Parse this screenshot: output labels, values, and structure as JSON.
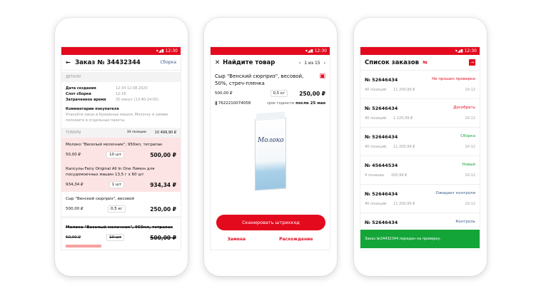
{
  "status_time": "12:30",
  "order": {
    "title": "Заказ № 34432344",
    "status": "Сборка",
    "details_label": "ДЕТАЛИ",
    "details": [
      {
        "k": "Дата создания",
        "v": "12:34 12.08.2020"
      },
      {
        "k": "Слот сборки",
        "v": "12-16"
      },
      {
        "k": "Затраченное время",
        "v": "25 минут (13:40-14:05)"
      }
    ],
    "comment_title": "Комментарии покупателя",
    "comment": "Упакуйте заказ в бумажные мешки. Молочку и химию положите в отдельные пакеты.",
    "goods_label": "ТОВАРЫ",
    "goods_count": "34 позиции",
    "goods_total": "10 499,90 ₽",
    "items": [
      {
        "name": "Молоко \"Веселый молочник\", 950мл, тетрапак",
        "price": "50,00 ₽",
        "qty": "10 шт",
        "sum": "500,00 ₽"
      },
      {
        "name": "Капсулы Fairy Original All In One Лимон для посудомоечных машин 13,5 г х 60 шт",
        "price": "934,34 ₽",
        "qty": "1 шт",
        "sum": "934,34 ₽"
      },
      {
        "name": "Сыр \"Венский сюрприз\", весовой",
        "price": "500,00 ₽",
        "qty": "0,5 кг",
        "sum": "250,00 ₽"
      },
      {
        "name": "Молоко \"Веселый молочник\", 950мл, тетрапак",
        "price": "50,00 ₽",
        "qty": "10 шт",
        "sum": "500,00 ₽"
      }
    ]
  },
  "find": {
    "title": "Найдите товар",
    "pager": "1 из 15",
    "product": "Сыр \"Венский сюрприз\", весовой, 50%, стреч-пленка",
    "price": "500,00 ₽",
    "qty": "0,5 кг",
    "sum": "250,00 ₽",
    "barcode": "7622210074058",
    "expiry_label": "срок годности",
    "expiry": "после 25 мая",
    "package_text": "Молоко",
    "scan": "Сканировать штрихкод",
    "replace": "Замена",
    "discrepancy": "Расхождение"
  },
  "orders": {
    "title": "Список заказов",
    "list": [
      {
        "no": "№ 52646434",
        "status": "Не прошел проверки",
        "color": "#e30a1e",
        "pos": "40 позиций",
        "sum": "11 200,99 ₽",
        "slot": "10-12"
      },
      {
        "no": "№ 52646434",
        "status": "Дособрать",
        "color": "#e30a1e",
        "pos": "40 позиций",
        "sum": "1 120,99 ₽",
        "slot": "10-12"
      },
      {
        "no": "№ 52646434",
        "status": "Сборка",
        "color": "#1aa33a",
        "pos": "40 позиций",
        "sum": "11 200,99 ₽",
        "slot": "10-12"
      },
      {
        "no": "№ 45644534",
        "status": "Новый",
        "color": "#1aa33a",
        "pos": "4 позиции",
        "sum": "200,99 ₽",
        "slot": "10-12"
      },
      {
        "no": "№ 52646434",
        "status": "Ожидает контроля",
        "color": "#3b5a8c",
        "pos": "40 позиций",
        "sum": "11 200,99 ₽",
        "slot": "10-12"
      },
      {
        "no": "№ 52646434",
        "status": "Контроль",
        "color": "#3b5a8c"
      }
    ],
    "toast": "Заказ №34432344 передан на проверку."
  }
}
